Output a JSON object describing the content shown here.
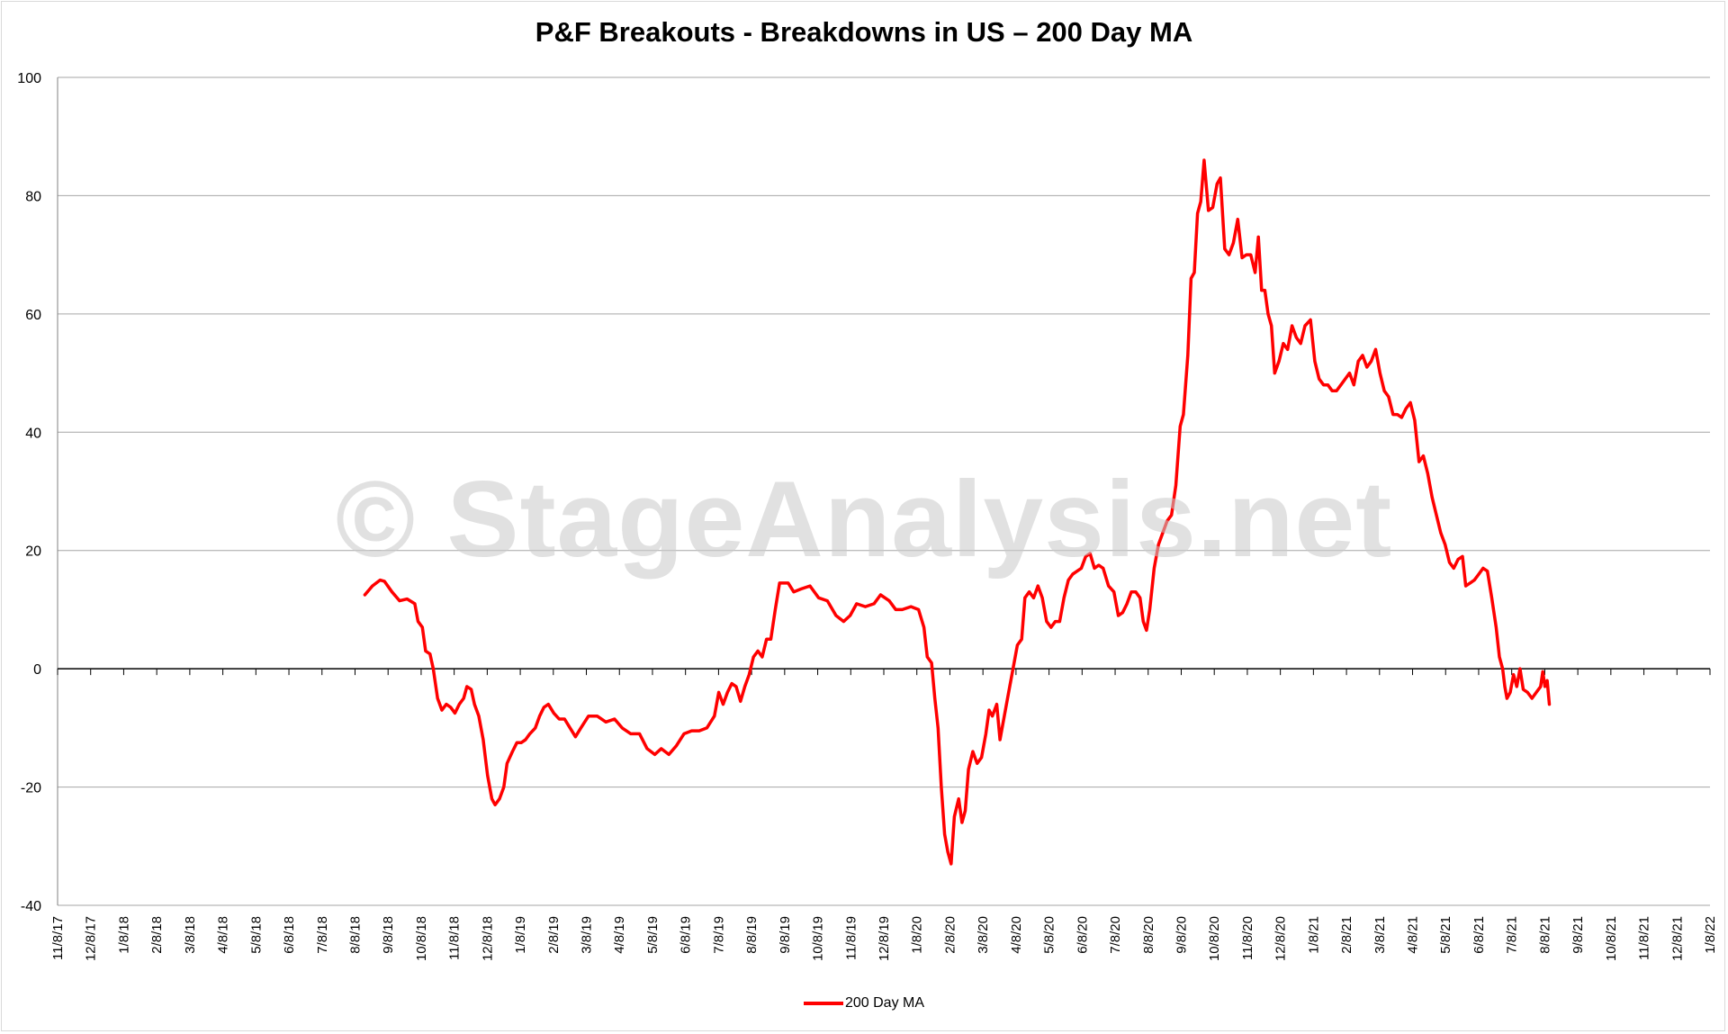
{
  "chart_data": {
    "type": "line",
    "title": "P&F Breakouts - Breakdowns in US – 200 Day MA",
    "watermark": "© StageAnalysis.net",
    "xlabel": "",
    "ylabel": "",
    "ylim": [
      -40,
      100
    ],
    "yticks": [
      "100",
      "80",
      "60",
      "40",
      "20",
      "0",
      "-20",
      "-40"
    ],
    "xticks": [
      "11/8/17",
      "12/8/17",
      "1/8/18",
      "2/8/18",
      "3/8/18",
      "4/8/18",
      "5/8/18",
      "6/8/18",
      "7/8/18",
      "8/8/18",
      "9/8/18",
      "10/8/18",
      "11/8/18",
      "12/8/18",
      "1/8/19",
      "2/8/19",
      "3/8/19",
      "4/8/19",
      "5/8/19",
      "6/8/19",
      "7/8/19",
      "8/8/19",
      "9/8/19",
      "10/8/19",
      "11/8/19",
      "12/8/19",
      "1/8/20",
      "2/8/20",
      "3/8/20",
      "4/8/20",
      "5/8/20",
      "6/8/20",
      "7/8/20",
      "8/8/20",
      "9/8/20",
      "10/8/20",
      "11/8/20",
      "12/8/20",
      "1/8/21",
      "2/8/21",
      "3/8/21",
      "4/8/21",
      "5/8/21",
      "6/8/21",
      "7/8/21",
      "8/8/21",
      "9/8/21",
      "10/8/21",
      "11/8/21",
      "12/8/21",
      "1/8/22"
    ],
    "grid": true,
    "legend_position": "bottom",
    "series": [
      {
        "name": "200 Day MA",
        "color": "#ff0000",
        "points": [
          [
            "2018-08-18",
            12.5
          ],
          [
            "2018-08-25",
            14
          ],
          [
            "2018-09-01",
            15
          ],
          [
            "2018-09-05",
            14.8
          ],
          [
            "2018-09-12",
            13
          ],
          [
            "2018-09-19",
            11.5
          ],
          [
            "2018-09-26",
            11.8
          ],
          [
            "2018-10-03",
            11
          ],
          [
            "2018-10-06",
            8
          ],
          [
            "2018-10-10",
            7
          ],
          [
            "2018-10-13",
            3
          ],
          [
            "2018-10-17",
            2.5
          ],
          [
            "2018-10-20",
            0
          ],
          [
            "2018-10-24",
            -5
          ],
          [
            "2018-10-28",
            -7
          ],
          [
            "2018-11-01",
            -6
          ],
          [
            "2018-11-05",
            -6.5
          ],
          [
            "2018-11-09",
            -7.5
          ],
          [
            "2018-11-13",
            -6
          ],
          [
            "2018-11-17",
            -5
          ],
          [
            "2018-11-20",
            -3
          ],
          [
            "2018-11-24",
            -3.5
          ],
          [
            "2018-11-27",
            -6
          ],
          [
            "2018-12-01",
            -8
          ],
          [
            "2018-12-05",
            -12
          ],
          [
            "2018-12-09",
            -18
          ],
          [
            "2018-12-13",
            -22
          ],
          [
            "2018-12-16",
            -23
          ],
          [
            "2018-12-20",
            -22
          ],
          [
            "2018-12-24",
            -20
          ],
          [
            "2018-12-27",
            -16
          ],
          [
            "2019-01-01",
            -14
          ],
          [
            "2019-01-05",
            -12.5
          ],
          [
            "2019-01-09",
            -12.5
          ],
          [
            "2019-01-13",
            -12
          ],
          [
            "2019-01-17",
            -11
          ],
          [
            "2019-01-22",
            -10
          ],
          [
            "2019-01-26",
            -8
          ],
          [
            "2019-01-30",
            -6.5
          ],
          [
            "2019-02-03",
            -6
          ],
          [
            "2019-02-08",
            -7.5
          ],
          [
            "2019-02-13",
            -8.5
          ],
          [
            "2019-02-18",
            -8.5
          ],
          [
            "2019-02-23",
            -10
          ],
          [
            "2019-02-28",
            -11.5
          ],
          [
            "2019-03-05",
            -10
          ],
          [
            "2019-03-12",
            -8
          ],
          [
            "2019-03-20",
            -8
          ],
          [
            "2019-03-28",
            -9
          ],
          [
            "2019-04-05",
            -8.5
          ],
          [
            "2019-04-12",
            -10
          ],
          [
            "2019-04-20",
            -11
          ],
          [
            "2019-04-28",
            -11
          ],
          [
            "2019-05-05",
            -13.5
          ],
          [
            "2019-05-12",
            -14.5
          ],
          [
            "2019-05-18",
            -13.5
          ],
          [
            "2019-05-25",
            -14.5
          ],
          [
            "2019-06-01",
            -13
          ],
          [
            "2019-06-08",
            -11
          ],
          [
            "2019-06-15",
            -10.5
          ],
          [
            "2019-06-22",
            -10.5
          ],
          [
            "2019-06-29",
            -10
          ],
          [
            "2019-07-06",
            -8
          ],
          [
            "2019-07-10",
            -4
          ],
          [
            "2019-07-14",
            -6
          ],
          [
            "2019-07-18",
            -4
          ],
          [
            "2019-07-22",
            -2.5
          ],
          [
            "2019-07-26",
            -3
          ],
          [
            "2019-07-30",
            -5.5
          ],
          [
            "2019-08-03",
            -3
          ],
          [
            "2019-08-07",
            -1
          ],
          [
            "2019-08-11",
            2
          ],
          [
            "2019-08-15",
            3
          ],
          [
            "2019-08-19",
            2
          ],
          [
            "2019-08-23",
            5
          ],
          [
            "2019-08-27",
            5
          ],
          [
            "2019-08-31",
            10
          ],
          [
            "2019-09-04",
            14.5
          ],
          [
            "2019-09-12",
            14.5
          ],
          [
            "2019-09-17",
            13
          ],
          [
            "2019-09-24",
            13.5
          ],
          [
            "2019-10-02",
            14
          ],
          [
            "2019-10-10",
            12
          ],
          [
            "2019-10-18",
            11.5
          ],
          [
            "2019-10-26",
            9
          ],
          [
            "2019-11-02",
            8
          ],
          [
            "2019-11-08",
            9
          ],
          [
            "2019-11-14",
            11
          ],
          [
            "2019-11-22",
            10.5
          ],
          [
            "2019-11-30",
            11
          ],
          [
            "2019-12-06",
            12.5
          ],
          [
            "2019-12-14",
            11.5
          ],
          [
            "2019-12-20",
            10
          ],
          [
            "2019-12-26",
            10
          ],
          [
            "2020-01-03",
            10.5
          ],
          [
            "2020-01-10",
            10
          ],
          [
            "2020-01-15",
            7
          ],
          [
            "2020-01-18",
            2
          ],
          [
            "2020-01-22",
            1
          ],
          [
            "2020-01-25",
            -5
          ],
          [
            "2020-01-28",
            -10
          ],
          [
            "2020-01-31",
            -20
          ],
          [
            "2020-02-03",
            -28
          ],
          [
            "2020-02-06",
            -31
          ],
          [
            "2020-02-09",
            -33
          ],
          [
            "2020-02-12",
            -25
          ],
          [
            "2020-02-16",
            -22
          ],
          [
            "2020-02-19",
            -26
          ],
          [
            "2020-02-22",
            -24
          ],
          [
            "2020-02-25",
            -17
          ],
          [
            "2020-02-29",
            -14
          ],
          [
            "2020-03-04",
            -16
          ],
          [
            "2020-03-08",
            -15
          ],
          [
            "2020-03-12",
            -11
          ],
          [
            "2020-03-15",
            -7
          ],
          [
            "2020-03-18",
            -8
          ],
          [
            "2020-03-22",
            -6
          ],
          [
            "2020-03-25",
            -12
          ],
          [
            "2020-03-29",
            -8
          ],
          [
            "2020-04-02",
            -4
          ],
          [
            "2020-04-06",
            0
          ],
          [
            "2020-04-10",
            4
          ],
          [
            "2020-04-14",
            5
          ],
          [
            "2020-04-17",
            12
          ],
          [
            "2020-04-21",
            13
          ],
          [
            "2020-04-25",
            12
          ],
          [
            "2020-04-29",
            14
          ],
          [
            "2020-05-03",
            12
          ],
          [
            "2020-05-07",
            8
          ],
          [
            "2020-05-11",
            7
          ],
          [
            "2020-05-15",
            8
          ],
          [
            "2020-05-19",
            8
          ],
          [
            "2020-05-23",
            12
          ],
          [
            "2020-05-27",
            15
          ],
          [
            "2020-05-31",
            16
          ],
          [
            "2020-06-04",
            16.5
          ],
          [
            "2020-06-08",
            17
          ],
          [
            "2020-06-12",
            19
          ],
          [
            "2020-06-16",
            19.5
          ],
          [
            "2020-06-20",
            17
          ],
          [
            "2020-06-24",
            17.5
          ],
          [
            "2020-06-28",
            17
          ],
          [
            "2020-07-03",
            14
          ],
          [
            "2020-07-08",
            13
          ],
          [
            "2020-07-12",
            9
          ],
          [
            "2020-07-16",
            9.5
          ],
          [
            "2020-07-20",
            11
          ],
          [
            "2020-07-24",
            13
          ],
          [
            "2020-07-28",
            13
          ],
          [
            "2020-08-01",
            12
          ],
          [
            "2020-08-04",
            8
          ],
          [
            "2020-08-07",
            6.5
          ],
          [
            "2020-08-10",
            10
          ],
          [
            "2020-08-14",
            17
          ],
          [
            "2020-08-18",
            21
          ],
          [
            "2020-08-22",
            23
          ],
          [
            "2020-08-26",
            25
          ],
          [
            "2020-08-30",
            26
          ],
          [
            "2020-09-03",
            31
          ],
          [
            "2020-09-07",
            41
          ],
          [
            "2020-09-10",
            43
          ],
          [
            "2020-09-14",
            53
          ],
          [
            "2020-09-17",
            66
          ],
          [
            "2020-09-20",
            67
          ],
          [
            "2020-09-23",
            77
          ],
          [
            "2020-09-26",
            79
          ],
          [
            "2020-09-29",
            86
          ],
          [
            "2020-10-03",
            77.5
          ],
          [
            "2020-10-07",
            78
          ],
          [
            "2020-10-11",
            82
          ],
          [
            "2020-10-14",
            83
          ],
          [
            "2020-10-18",
            71
          ],
          [
            "2020-10-22",
            70
          ],
          [
            "2020-10-26",
            72
          ],
          [
            "2020-10-30",
            76
          ],
          [
            "2020-11-03",
            69.5
          ],
          [
            "2020-11-07",
            70
          ],
          [
            "2020-11-11",
            70
          ],
          [
            "2020-11-15",
            67
          ],
          [
            "2020-11-18",
            73
          ],
          [
            "2020-11-21",
            64
          ],
          [
            "2020-11-24",
            64
          ],
          [
            "2020-11-27",
            60
          ],
          [
            "2020-11-30",
            58
          ],
          [
            "2020-12-03",
            50
          ],
          [
            "2020-12-07",
            52
          ],
          [
            "2020-12-11",
            55
          ],
          [
            "2020-12-15",
            54
          ],
          [
            "2020-12-19",
            58
          ],
          [
            "2020-12-23",
            56
          ],
          [
            "2020-12-27",
            55
          ],
          [
            "2020-12-31",
            58
          ],
          [
            "2021-01-05",
            59
          ],
          [
            "2021-01-09",
            52
          ],
          [
            "2021-01-13",
            49
          ],
          [
            "2021-01-17",
            48
          ],
          [
            "2021-01-21",
            48
          ],
          [
            "2021-01-25",
            47
          ],
          [
            "2021-01-29",
            47
          ],
          [
            "2021-02-02",
            48
          ],
          [
            "2021-02-06",
            49
          ],
          [
            "2021-02-10",
            50
          ],
          [
            "2021-02-14",
            48
          ],
          [
            "2021-02-18",
            52
          ],
          [
            "2021-02-22",
            53
          ],
          [
            "2021-02-26",
            51
          ],
          [
            "2021-03-02",
            52
          ],
          [
            "2021-03-06",
            54
          ],
          [
            "2021-03-10",
            50
          ],
          [
            "2021-03-14",
            47
          ],
          [
            "2021-03-18",
            46
          ],
          [
            "2021-03-22",
            43
          ],
          [
            "2021-03-26",
            43
          ],
          [
            "2021-03-30",
            42.5
          ],
          [
            "2021-04-03",
            44
          ],
          [
            "2021-04-07",
            45
          ],
          [
            "2021-04-11",
            42
          ],
          [
            "2021-04-15",
            35
          ],
          [
            "2021-04-19",
            36
          ],
          [
            "2021-04-23",
            33
          ],
          [
            "2021-04-27",
            29
          ],
          [
            "2021-05-01",
            26
          ],
          [
            "2021-05-05",
            23
          ],
          [
            "2021-05-09",
            21
          ],
          [
            "2021-05-13",
            18
          ],
          [
            "2021-05-17",
            17
          ],
          [
            "2021-05-21",
            18.5
          ],
          [
            "2021-05-25",
            19
          ],
          [
            "2021-05-28",
            14
          ],
          [
            "2021-06-01",
            14.5
          ],
          [
            "2021-06-05",
            15
          ],
          [
            "2021-06-09",
            16
          ],
          [
            "2021-06-13",
            17
          ],
          [
            "2021-06-17",
            16.5
          ],
          [
            "2021-06-21",
            12
          ],
          [
            "2021-06-25",
            7
          ],
          [
            "2021-06-28",
            2
          ],
          [
            "2021-07-01",
            0
          ],
          [
            "2021-07-03",
            -3
          ],
          [
            "2021-07-05",
            -5
          ],
          [
            "2021-07-08",
            -4
          ],
          [
            "2021-07-11",
            -1
          ],
          [
            "2021-07-14",
            -3
          ],
          [
            "2021-07-17",
            0
          ],
          [
            "2021-07-20",
            -3.5
          ],
          [
            "2021-07-24",
            -4
          ],
          [
            "2021-07-28",
            -5
          ],
          [
            "2021-08-01",
            -4
          ],
          [
            "2021-08-05",
            -3
          ],
          [
            "2021-08-07",
            -0.5
          ],
          [
            "2021-08-09",
            -3
          ],
          [
            "2021-08-11",
            -2
          ],
          [
            "2021-08-13",
            -6
          ]
        ]
      }
    ]
  }
}
